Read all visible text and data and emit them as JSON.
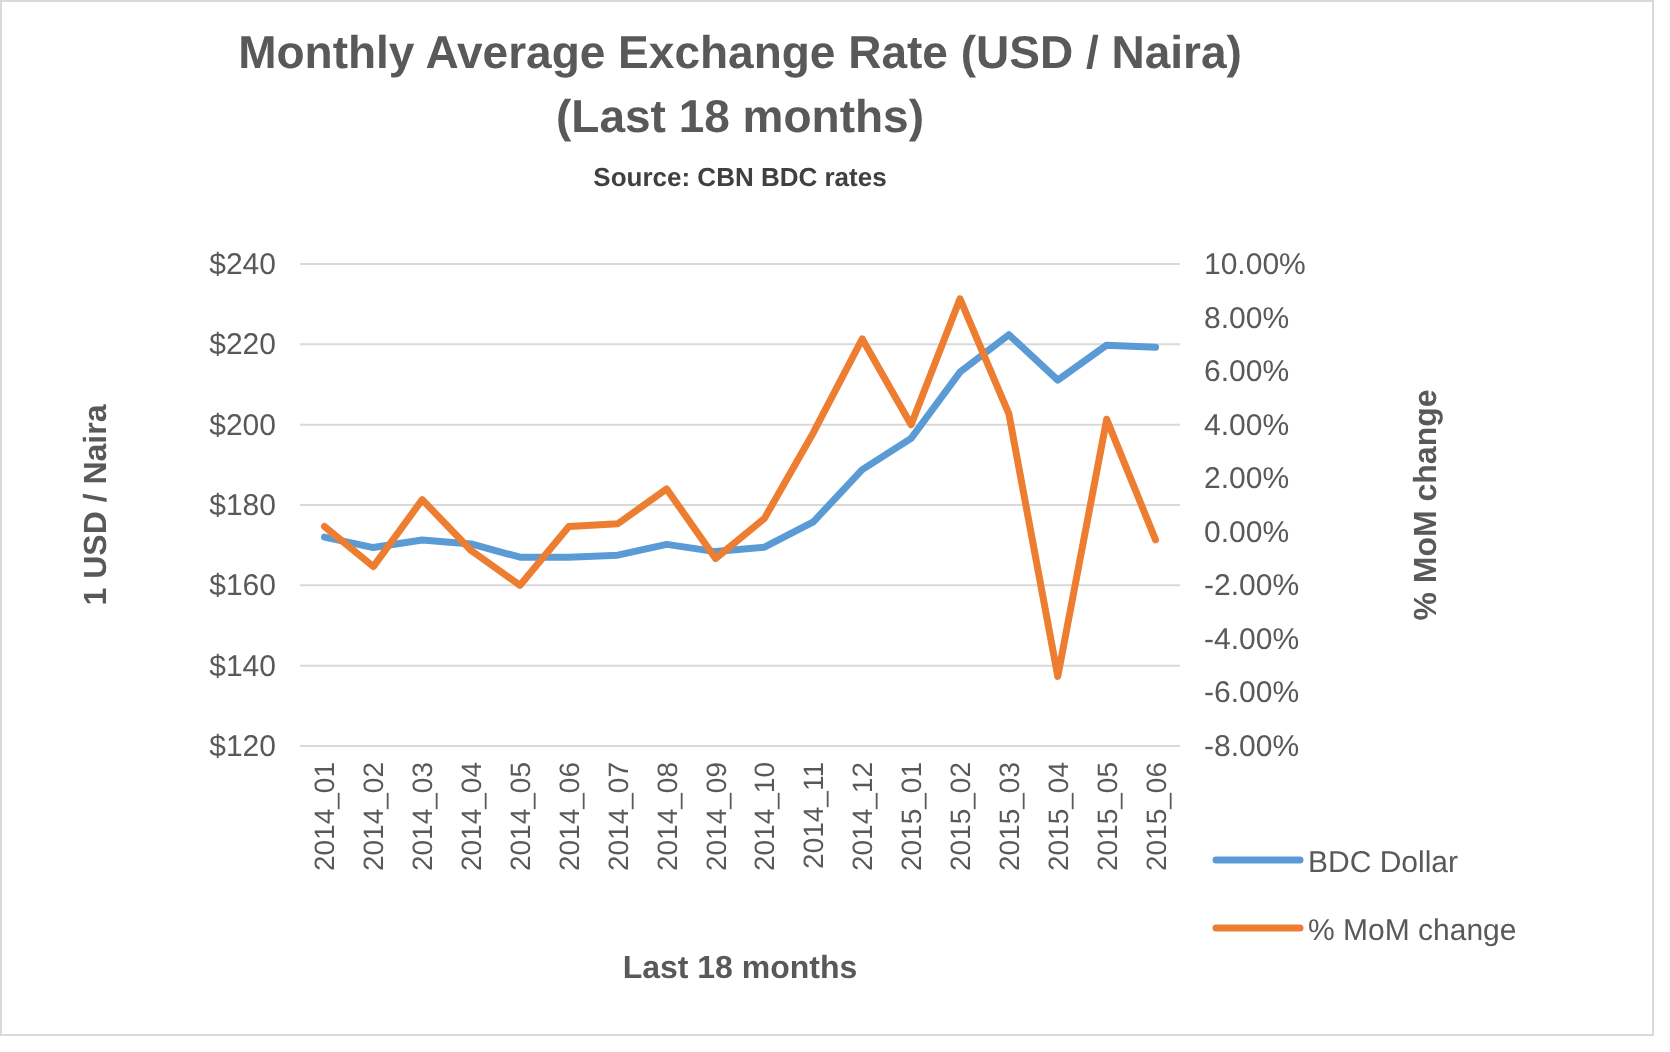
{
  "chart_data": {
    "type": "line",
    "title": "Monthly Average Exchange Rate (USD / Naira)\n(Last 18 months)",
    "subtitle": "Source: CBN BDC rates",
    "xlabel": "Last 18 months",
    "ylabel": "1 USD / Naira",
    "y2label": "% MoM change",
    "categories": [
      "2014_01",
      "2014_02",
      "2014_03",
      "2014_04",
      "2014_05",
      "2014_06",
      "2014_07",
      "2014_08",
      "2014_09",
      "2014_10",
      "2014_11",
      "2014_12",
      "2015_01",
      "2015_02",
      "2015_03",
      "2015_04",
      "2015_05",
      "2015_06"
    ],
    "series": [
      {
        "name": "BDC Dollar",
        "color": "#5b9bd5",
        "values": [
          172,
          169.4,
          171.3,
          170.3,
          167,
          167,
          167.5,
          170.2,
          168.4,
          169.5,
          175.8,
          188.8,
          196.6,
          213.1,
          222.4,
          211.1,
          219.8,
          219.3
        ]
      },
      {
        "name": "% MoM change",
        "color": "#ed7d31",
        "axis": "y2",
        "values": [
          0.2,
          -1.3,
          1.2,
          -0.7,
          -2.0,
          0.2,
          0.3,
          1.6,
          -1.0,
          0.5,
          3.7,
          7.2,
          4.0,
          8.7,
          4.4,
          -5.4,
          4.2,
          -0.3
        ]
      }
    ],
    "ylim": [
      120,
      240
    ],
    "yticks": [
      {
        "value": 120,
        "label": "$120"
      },
      {
        "value": 140,
        "label": "$140"
      },
      {
        "value": 160,
        "label": "$160"
      },
      {
        "value": 180,
        "label": "$180"
      },
      {
        "value": 200,
        "label": "$200"
      },
      {
        "value": 220,
        "label": "$220"
      },
      {
        "value": 240,
        "label": "$240"
      }
    ],
    "y2lim": [
      -8,
      10
    ],
    "y2ticks": [
      {
        "value": -8,
        "label": "-8.00%"
      },
      {
        "value": -6,
        "label": "-6.00%"
      },
      {
        "value": -4,
        "label": "-4.00%"
      },
      {
        "value": -2,
        "label": "-2.00%"
      },
      {
        "value": 0,
        "label": "0.00%"
      },
      {
        "value": 2,
        "label": "2.00%"
      },
      {
        "value": 4,
        "label": "4.00%"
      },
      {
        "value": 6,
        "label": "6.00%"
      },
      {
        "value": 8,
        "label": "8.00%"
      },
      {
        "value": 10,
        "label": "10.00%"
      }
    ],
    "grid": "y",
    "legend": "right",
    "marker": "none",
    "line_style": "solid"
  }
}
